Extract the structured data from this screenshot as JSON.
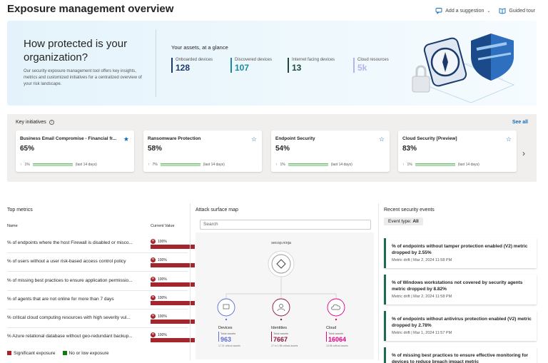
{
  "page": {
    "title": "Exposure management overview",
    "add_suggestion": "Add a suggestion",
    "guided_tour": "Guided tour"
  },
  "hero": {
    "heading": "How protected is your organization?",
    "description": "Our security exposure management tool offers key insights, metrics and customized initiatives for a centralized overview of your risk landscape.",
    "assets_title": "Your assets, at a glance",
    "assets": [
      {
        "label": "Onboarded devices",
        "value": "128",
        "color": "#1b3a6b"
      },
      {
        "label": "Discovered devices",
        "value": "107",
        "color": "#1a8aa0"
      },
      {
        "label": "Internet facing devices",
        "value": "13",
        "color": "#1e4a3a"
      },
      {
        "label": "Cloud resources",
        "value": "5k",
        "color": "#b9b2ef"
      }
    ]
  },
  "initiatives": {
    "title": "Key initiatives",
    "see_all": "See all",
    "cards": [
      {
        "name": "Business Email Compromise - Financial fr...",
        "percent": "65%",
        "trend": "1%",
        "period": "(last 14 days)",
        "favorited": true
      },
      {
        "name": "Ransomware Protection",
        "percent": "58%",
        "trend": "7%",
        "period": "(last 14 days)",
        "favorited": false
      },
      {
        "name": "Endpoint Security",
        "percent": "54%",
        "trend": "1%",
        "period": "(last 14 days)",
        "favorited": false
      },
      {
        "name": "Cloud Security [Preview]",
        "percent": "83%",
        "trend": "1%",
        "period": "(last 14 days)",
        "favorited": false
      }
    ]
  },
  "top_metrics": {
    "title": "Top metrics",
    "col_name": "Name",
    "col_value": "Current Value",
    "rows": [
      {
        "name": "% of endpoints where the host Firewall is disabled or misco...",
        "value": "100%"
      },
      {
        "name": "% of users without a user risk-based access control policy",
        "value": "100%"
      },
      {
        "name": "% of missing best practices to ensure application permissio...",
        "value": "100%"
      },
      {
        "name": "% of agents that are not online for more than 7 days",
        "value": "100%"
      },
      {
        "name": "% critical cloud computing resources with high severity vul...",
        "value": "100%"
      },
      {
        "name": "% Azure relational database without geo-redundant backup...",
        "value": "100%"
      }
    ],
    "legend": [
      {
        "label": "Significant exposure",
        "color": "#a4262c"
      },
      {
        "label": "No or low exposure",
        "color": "#107c10"
      }
    ]
  },
  "attack_surface": {
    "title": "Attack surface map",
    "search_placeholder": "Search",
    "root_label": "secop.ninja",
    "nodes": [
      {
        "label": "Devices",
        "sub": "Total assets",
        "value": "963",
        "color": "#5b6fd6",
        "note": "17.21 critical assets"
      },
      {
        "label": "Identities",
        "sub": "Total assets",
        "value": "7667",
        "color": "#8a1538",
        "note": "17 in 1.98 critical assets"
      },
      {
        "label": "Cloud",
        "sub": "Total assets",
        "value": "16064",
        "color": "#e3008c",
        "note": "13.56 critical assets"
      }
    ]
  },
  "events": {
    "title": "Recent security events",
    "filter_label": "Event type:",
    "filter_value": "All",
    "items": [
      {
        "title": "% of endpoints without tamper protection enabled (V2) metric dropped by 2.55%",
        "meta": "Metric drift | Mar 2, 2024 11:58 PM"
      },
      {
        "title": "% of Windows workstations not covered by security agents metric dropped by 8.82%",
        "meta": "Metric drift | Mar 2, 2024 11:58 PM"
      },
      {
        "title": "% of endpoints without antivirus protection enabled (V2) metric dropped by 2.78%",
        "meta": "Metric drift | Mar 1, 2024 11:57 PM"
      },
      {
        "title": "% of missing best practices to ensure effective monitoring for devices to reduce breach impact metric",
        "meta": ""
      }
    ]
  },
  "colors": {
    "accent": "#0f6cbd",
    "significant": "#a4262c",
    "event_border": "#1e6b52"
  }
}
